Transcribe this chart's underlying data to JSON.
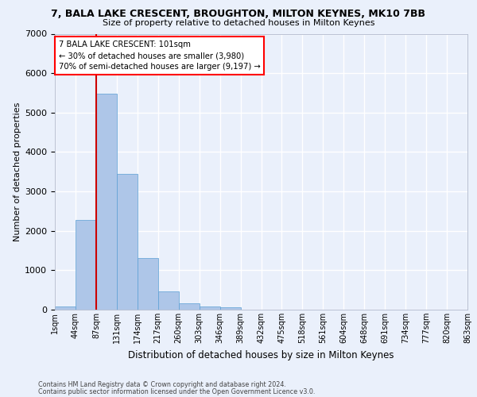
{
  "title": "7, BALA LAKE CRESCENT, BROUGHTON, MILTON KEYNES, MK10 7BB",
  "subtitle": "Size of property relative to detached houses in Milton Keynes",
  "xlabel": "Distribution of detached houses by size in Milton Keynes",
  "ylabel": "Number of detached properties",
  "footnote1": "Contains HM Land Registry data © Crown copyright and database right 2024.",
  "footnote2": "Contains public sector information licensed under the Open Government Licence v3.0.",
  "annotation_line1": "7 BALA LAKE CRESCENT: 101sqm",
  "annotation_line2": "← 30% of detached houses are smaller (3,980)",
  "annotation_line3": "70% of semi-detached houses are larger (9,197) →",
  "bar_values": [
    75,
    2280,
    5480,
    3440,
    1310,
    460,
    155,
    85,
    55,
    0,
    0,
    0,
    0,
    0,
    0,
    0,
    0,
    0,
    0,
    0
  ],
  "bar_color": "#aec6e8",
  "bar_edge_color": "#5a9fd4",
  "tick_labels": [
    "1sqm",
    "44sqm",
    "87sqm",
    "131sqm",
    "174sqm",
    "217sqm",
    "260sqm",
    "303sqm",
    "346sqm",
    "389sqm",
    "432sqm",
    "475sqm",
    "518sqm",
    "561sqm",
    "604sqm",
    "648sqm",
    "691sqm",
    "734sqm",
    "777sqm",
    "820sqm",
    "863sqm"
  ],
  "vline_x": 2,
  "vline_color": "#cc0000",
  "ylim": [
    0,
    7000
  ],
  "yticks": [
    0,
    1000,
    2000,
    3000,
    4000,
    5000,
    6000,
    7000
  ],
  "bg_color": "#eaf0fb",
  "grid_color": "#ffffff"
}
